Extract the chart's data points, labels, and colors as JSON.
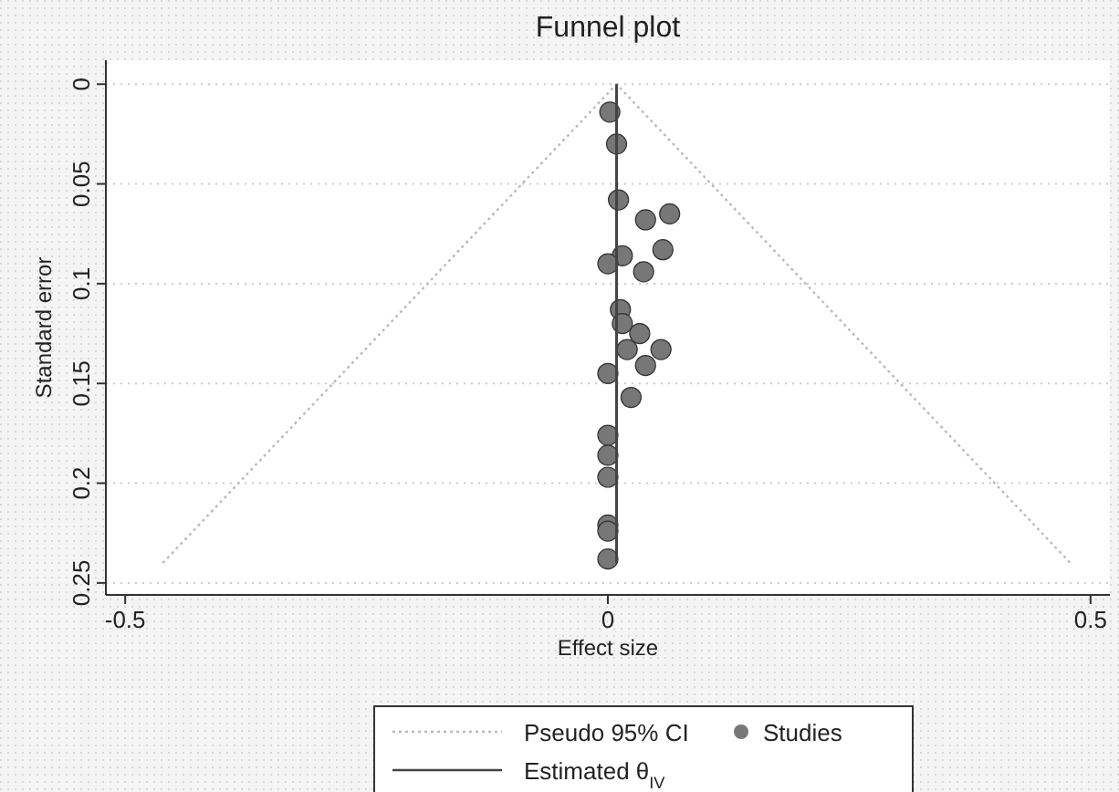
{
  "chart_data": {
    "type": "scatter",
    "title": "Funnel plot",
    "xlabel": "Effect size",
    "ylabel": "Standard error",
    "xlim": [
      -0.52,
      0.52
    ],
    "ylim": [
      0.256,
      -0.012
    ],
    "xticks": [
      -0.5,
      0,
      0.5
    ],
    "yticks": [
      0,
      0.05,
      0.1,
      0.15,
      0.2,
      0.25
    ],
    "grid": "y",
    "legend": "bottom",
    "series": [
      {
        "name": "Pseudo 95% CI",
        "type": "line",
        "line_style": "dotted",
        "color": "#bbbbbb",
        "x": [
          -0.461,
          0.009,
          0.479
        ],
        "values": [
          0.24,
          0,
          0.24
        ]
      },
      {
        "name": "Studies",
        "marker": "circle",
        "color": "#777777",
        "x": [
          0.002,
          0.009,
          0.011,
          0.039,
          0.064,
          0.015,
          0.057,
          0,
          0.037,
          0.013,
          0.015,
          0.033,
          0.02,
          0.055,
          0.039,
          0,
          0.024,
          0,
          0,
          0,
          0,
          0,
          0
        ],
        "values": [
          0.014,
          0.03,
          0.058,
          0.068,
          0.065,
          0.086,
          0.083,
          0.09,
          0.094,
          0.113,
          0.12,
          0.125,
          0.133,
          0.133,
          0.141,
          0.145,
          0.157,
          0.176,
          0.186,
          0.197,
          0.221,
          0.224,
          0.238
        ]
      },
      {
        "name": "Estimated θ$_{IV}$",
        "type": "line",
        "line_style": "solid",
        "color": "#444444",
        "x": [
          0.009,
          0.009
        ],
        "values": [
          0,
          0.24
        ]
      }
    ]
  }
}
